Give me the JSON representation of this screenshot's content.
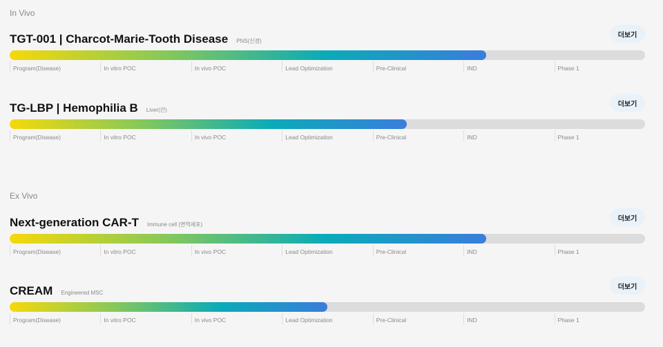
{
  "sections": [
    {
      "label": "In Vivo",
      "programs": [
        {
          "title": "TGT-001 | Charcot-Marie-Tooth Disease",
          "subtitle": "PNS(신경)",
          "progress": 0.75,
          "button": "더보기"
        },
        {
          "title": "TG-LBP | Hemophilia B",
          "subtitle": "Liver(간)",
          "progress": 0.625,
          "button": "더보기"
        }
      ]
    },
    {
      "label": "Ex Vivo",
      "programs": [
        {
          "title": "Next-generation CAR-T",
          "subtitle": "Immune cell (면역세포)",
          "progress": 0.75,
          "button": "더보기"
        },
        {
          "title": "CREAM",
          "subtitle": "Engineered MSC",
          "progress": 0.5,
          "button": "더보기"
        }
      ]
    }
  ],
  "stages": [
    "Program(Disease)",
    "In vitro POC",
    "In vivo POC",
    "Lead Optimization",
    "Pre-Clinical",
    "IND",
    "Phase 1"
  ],
  "colors": {
    "gradient": [
      "#f5d90a",
      "#86c85a",
      "#0aabb8",
      "#3a7ddc"
    ],
    "track": "#dcdcdc"
  }
}
